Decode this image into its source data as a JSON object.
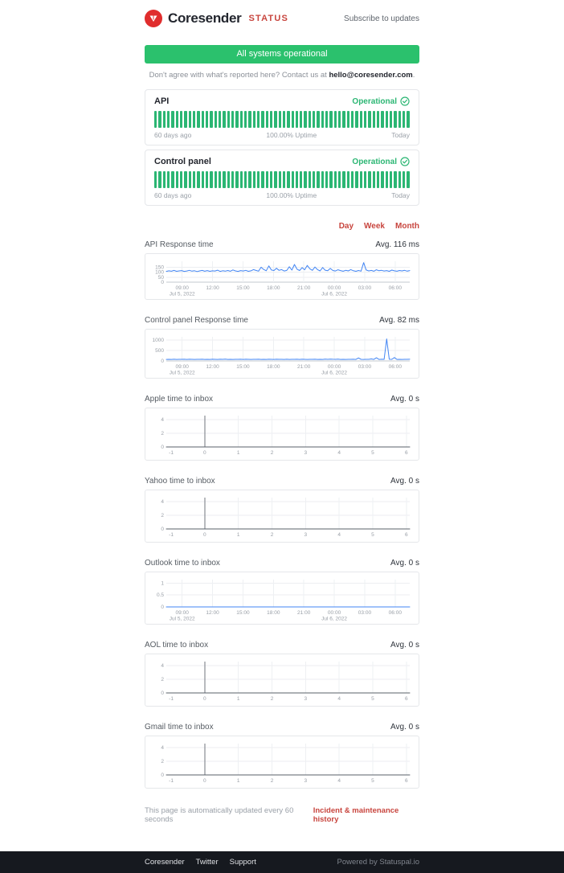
{
  "theme": {
    "green": "#2bc16d",
    "green_dark": "#2bb673",
    "red": "#c8453e",
    "logo_red": "#e02d2d",
    "dark": "#23262e",
    "footer_bg": "#16191f",
    "chart_blue": "#4285f4",
    "chart_gray": "#596069"
  },
  "header": {
    "brand": "Coresender",
    "brand_suffix": "STATUS",
    "subscribe_label": "Subscribe to updates"
  },
  "banner": {
    "label": "All systems operational"
  },
  "contact": {
    "text_before": "Don't agree with what's reported here? Contact us at ",
    "email": "hello@coresender.com",
    "text_after": "."
  },
  "services": [
    {
      "name": "API",
      "status": "Operational",
      "bars": 60,
      "range_start": "60 days ago",
      "uptime": "100.00% Uptime",
      "range_end": "Today"
    },
    {
      "name": "Control panel",
      "status": "Operational",
      "bars": 60,
      "range_start": "60 days ago",
      "uptime": "100.00% Uptime",
      "range_end": "Today"
    }
  ],
  "period_tabs": [
    "Day",
    "Week",
    "Month"
  ],
  "chart_data": [
    {
      "type": "line",
      "title": "API Response time",
      "avg_label": "Avg. 116 ms",
      "ylabel": "ms",
      "color": "#4285f4",
      "height": 50,
      "ylim": [
        0,
        210
      ],
      "y_ticks": [
        {
          "v": 0,
          "label": "0"
        },
        {
          "v": 50,
          "label": "50"
        },
        {
          "v": 100,
          "label": "100"
        },
        {
          "v": 150,
          "label": "150"
        }
      ],
      "x_ticks": [
        {
          "pos": 0.065,
          "label": "09:00",
          "sub": "Jul 5, 2022"
        },
        {
          "pos": 0.19,
          "label": "12:00"
        },
        {
          "pos": 0.315,
          "label": "15:00"
        },
        {
          "pos": 0.44,
          "label": "18:00"
        },
        {
          "pos": 0.565,
          "label": "21:00"
        },
        {
          "pos": 0.69,
          "label": "00:00",
          "sub": "Jul 6, 2022"
        },
        {
          "pos": 0.815,
          "label": "03:00"
        },
        {
          "pos": 0.94,
          "label": "06:00"
        }
      ],
      "values": [
        108,
        114,
        110,
        118,
        109,
        113,
        116,
        108,
        112,
        119,
        111,
        115,
        107,
        113,
        118,
        110,
        116,
        109,
        114,
        112,
        120,
        108,
        115,
        111,
        117,
        110,
        123,
        113,
        108,
        116,
        112,
        119,
        109,
        114,
        126,
        118,
        111,
        150,
        128,
        115,
        163,
        122,
        117,
        140,
        119,
        126,
        112,
        118,
        155,
        121,
        178,
        130,
        117,
        146,
        124,
        168,
        135,
        119,
        152,
        126,
        113,
        147,
        120,
        115,
        138,
        117,
        112,
        124,
        116,
        110,
        119,
        113,
        126,
        115,
        109,
        117,
        111,
        196,
        122,
        113,
        118,
        110,
        124,
        115,
        119,
        112,
        116,
        109,
        121,
        114,
        110,
        117,
        113,
        119,
        111,
        116
      ]
    },
    {
      "type": "line",
      "title": "Control panel Response time",
      "avg_label": "Avg. 82 ms",
      "ylabel": "ms",
      "color": "#4285f4",
      "height": 54,
      "ylim": [
        0,
        1150
      ],
      "y_ticks": [
        {
          "v": 0,
          "label": "0"
        },
        {
          "v": 500,
          "label": "500"
        },
        {
          "v": 1000,
          "label": "1000"
        }
      ],
      "x_ticks": [
        {
          "pos": 0.065,
          "label": "09:00",
          "sub": "Jul 5, 2022"
        },
        {
          "pos": 0.19,
          "label": "12:00"
        },
        {
          "pos": 0.315,
          "label": "15:00"
        },
        {
          "pos": 0.44,
          "label": "18:00"
        },
        {
          "pos": 0.565,
          "label": "21:00"
        },
        {
          "pos": 0.69,
          "label": "00:00",
          "sub": "Jul 6, 2022"
        },
        {
          "pos": 0.815,
          "label": "03:00"
        },
        {
          "pos": 0.94,
          "label": "06:00"
        }
      ],
      "values": [
        72,
        78,
        74,
        80,
        73,
        77,
        75,
        82,
        74,
        79,
        76,
        72,
        78,
        75,
        81,
        73,
        77,
        74,
        80,
        76,
        72,
        79,
        75,
        83,
        74,
        78,
        73,
        77,
        75,
        81,
        74,
        79,
        76,
        72,
        78,
        75,
        80,
        73,
        77,
        74,
        81,
        76,
        72,
        79,
        75,
        78,
        74,
        80,
        73,
        77,
        75,
        82,
        74,
        79,
        76,
        72,
        78,
        75,
        81,
        73,
        77,
        74,
        86,
        76,
        90,
        79,
        75,
        83,
        74,
        78,
        73,
        77,
        75,
        81,
        74,
        140,
        76,
        72,
        78,
        75,
        95,
        73,
        150,
        74,
        81,
        76,
        1050,
        79,
        75,
        160,
        74,
        78,
        73,
        77,
        75,
        80
      ]
    },
    {
      "type": "line",
      "title": "Apple time to inbox",
      "avg_label": "Avg. 0 s",
      "ylabel": "s",
      "color": "#596069",
      "height": 58,
      "ylim": [
        0,
        4.6
      ],
      "y_ticks": [
        {
          "v": 0,
          "label": "0"
        },
        {
          "v": 2,
          "label": "2"
        },
        {
          "v": 4,
          "label": "4"
        }
      ],
      "x_ticks": [
        {
          "pos": 0.02,
          "label": "-1",
          "grid": false
        },
        {
          "pos": 0.158,
          "label": "0",
          "major": true
        },
        {
          "pos": 0.296,
          "label": "1"
        },
        {
          "pos": 0.434,
          "label": "2"
        },
        {
          "pos": 0.572,
          "label": "3"
        },
        {
          "pos": 0.71,
          "label": "4"
        },
        {
          "pos": 0.848,
          "label": "5"
        },
        {
          "pos": 0.986,
          "label": "6"
        }
      ],
      "values": [
        0,
        0
      ]
    },
    {
      "type": "line",
      "title": "Yahoo time to inbox",
      "avg_label": "Avg. 0 s",
      "ylabel": "s",
      "color": "#596069",
      "height": 58,
      "ylim": [
        0,
        4.6
      ],
      "y_ticks": [
        {
          "v": 0,
          "label": "0"
        },
        {
          "v": 2,
          "label": "2"
        },
        {
          "v": 4,
          "label": "4"
        }
      ],
      "x_ticks": [
        {
          "pos": 0.02,
          "label": "-1",
          "grid": false
        },
        {
          "pos": 0.158,
          "label": "0",
          "major": true
        },
        {
          "pos": 0.296,
          "label": "1"
        },
        {
          "pos": 0.434,
          "label": "2"
        },
        {
          "pos": 0.572,
          "label": "3"
        },
        {
          "pos": 0.71,
          "label": "4"
        },
        {
          "pos": 0.848,
          "label": "5"
        },
        {
          "pos": 0.986,
          "label": "6"
        }
      ],
      "values": [
        0,
        0
      ]
    },
    {
      "type": "line",
      "title": "Outlook time to inbox",
      "avg_label": "Avg. 0 s",
      "ylabel": "s",
      "color": "#4285f4",
      "height": 58,
      "ylim": [
        0,
        1.15
      ],
      "y_ticks": [
        {
          "v": 0,
          "label": "0"
        },
        {
          "v": 0.5,
          "label": "0.5"
        },
        {
          "v": 1,
          "label": "1"
        }
      ],
      "x_ticks": [
        {
          "pos": 0.065,
          "label": "09:00",
          "sub": "Jul 5, 2022"
        },
        {
          "pos": 0.19,
          "label": "12:00"
        },
        {
          "pos": 0.315,
          "label": "15:00"
        },
        {
          "pos": 0.44,
          "label": "18:00"
        },
        {
          "pos": 0.565,
          "label": "21:00"
        },
        {
          "pos": 0.69,
          "label": "00:00",
          "sub": "Jul 6, 2022"
        },
        {
          "pos": 0.815,
          "label": "03:00"
        },
        {
          "pos": 0.94,
          "label": "06:00"
        }
      ],
      "values": [
        0,
        0
      ]
    },
    {
      "type": "line",
      "title": "AOL time to inbox",
      "avg_label": "Avg. 0 s",
      "ylabel": "s",
      "color": "#596069",
      "height": 58,
      "ylim": [
        0,
        4.6
      ],
      "y_ticks": [
        {
          "v": 0,
          "label": "0"
        },
        {
          "v": 2,
          "label": "2"
        },
        {
          "v": 4,
          "label": "4"
        }
      ],
      "x_ticks": [
        {
          "pos": 0.02,
          "label": "-1",
          "grid": false
        },
        {
          "pos": 0.158,
          "label": "0",
          "major": true
        },
        {
          "pos": 0.296,
          "label": "1"
        },
        {
          "pos": 0.434,
          "label": "2"
        },
        {
          "pos": 0.572,
          "label": "3"
        },
        {
          "pos": 0.71,
          "label": "4"
        },
        {
          "pos": 0.848,
          "label": "5"
        },
        {
          "pos": 0.986,
          "label": "6"
        }
      ],
      "values": [
        0,
        0
      ]
    },
    {
      "type": "line",
      "title": "Gmail time to inbox",
      "avg_label": "Avg. 0 s",
      "ylabel": "s",
      "color": "#596069",
      "height": 58,
      "ylim": [
        0,
        4.6
      ],
      "y_ticks": [
        {
          "v": 0,
          "label": "0"
        },
        {
          "v": 2,
          "label": "2"
        },
        {
          "v": 4,
          "label": "4"
        }
      ],
      "x_ticks": [
        {
          "pos": 0.02,
          "label": "-1",
          "grid": false
        },
        {
          "pos": 0.158,
          "label": "0",
          "major": true
        },
        {
          "pos": 0.296,
          "label": "1"
        },
        {
          "pos": 0.434,
          "label": "2"
        },
        {
          "pos": 0.572,
          "label": "3"
        },
        {
          "pos": 0.71,
          "label": "4"
        },
        {
          "pos": 0.848,
          "label": "5"
        },
        {
          "pos": 0.986,
          "label": "6"
        }
      ],
      "values": [
        0,
        0
      ]
    }
  ],
  "note": {
    "left": "This page is automatically updated every 60 seconds",
    "link": "Incident & maintenance history"
  },
  "footer": {
    "links": [
      "Coresender",
      "Twitter",
      "Support"
    ],
    "powered": "Powered by Statuspal.io"
  }
}
